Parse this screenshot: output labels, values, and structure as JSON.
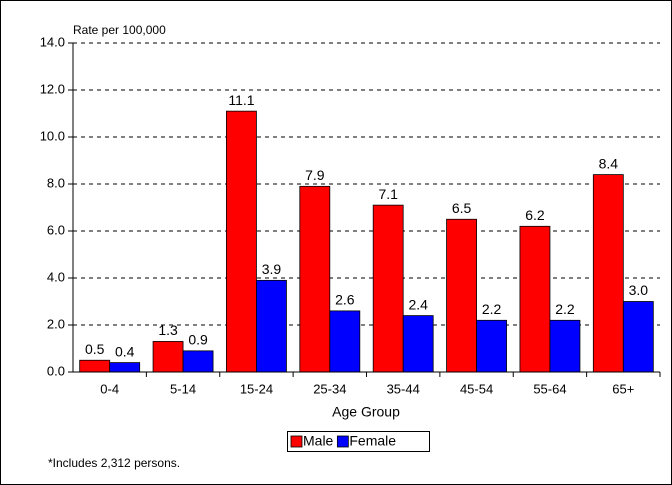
{
  "chart_data": {
    "type": "bar",
    "y_label": "Rate per 100,000",
    "x_label": "Age Group",
    "note": "*Includes 2,312 persons.",
    "categories": [
      "0-4",
      "5-14",
      "15-24",
      "25-34",
      "35-44",
      "45-54",
      "55-64",
      "65+"
    ],
    "series": [
      {
        "name": "Male",
        "color": "#ff0000",
        "values": [
          0.5,
          1.3,
          11.1,
          7.9,
          7.1,
          6.5,
          6.2,
          8.4
        ],
        "value_labels": [
          "0.5",
          "1.3",
          "11.1",
          "7.9",
          "7.1",
          "6.5",
          "6.2",
          "8.4"
        ]
      },
      {
        "name": "Female",
        "color": "#0000ff",
        "values": [
          0.4,
          0.9,
          3.9,
          2.6,
          2.4,
          2.2,
          2.2,
          3.0
        ],
        "value_labels": [
          "0.4",
          "0.9",
          "3.9",
          "2.6",
          "2.4",
          "2.2",
          "2.2",
          "3.0"
        ]
      }
    ],
    "ylim": [
      0,
      14
    ],
    "yticks": [
      {
        "value": 0,
        "label": "0.0"
      },
      {
        "value": 2,
        "label": "2.0"
      },
      {
        "value": 4,
        "label": "4.0"
      },
      {
        "value": 6,
        "label": "6.0"
      },
      {
        "value": 8,
        "label": "8.0"
      },
      {
        "value": 10,
        "label": "10.0"
      },
      {
        "value": 12,
        "label": "12.0"
      },
      {
        "value": 14,
        "label": "14.0"
      }
    ],
    "grid": true
  }
}
